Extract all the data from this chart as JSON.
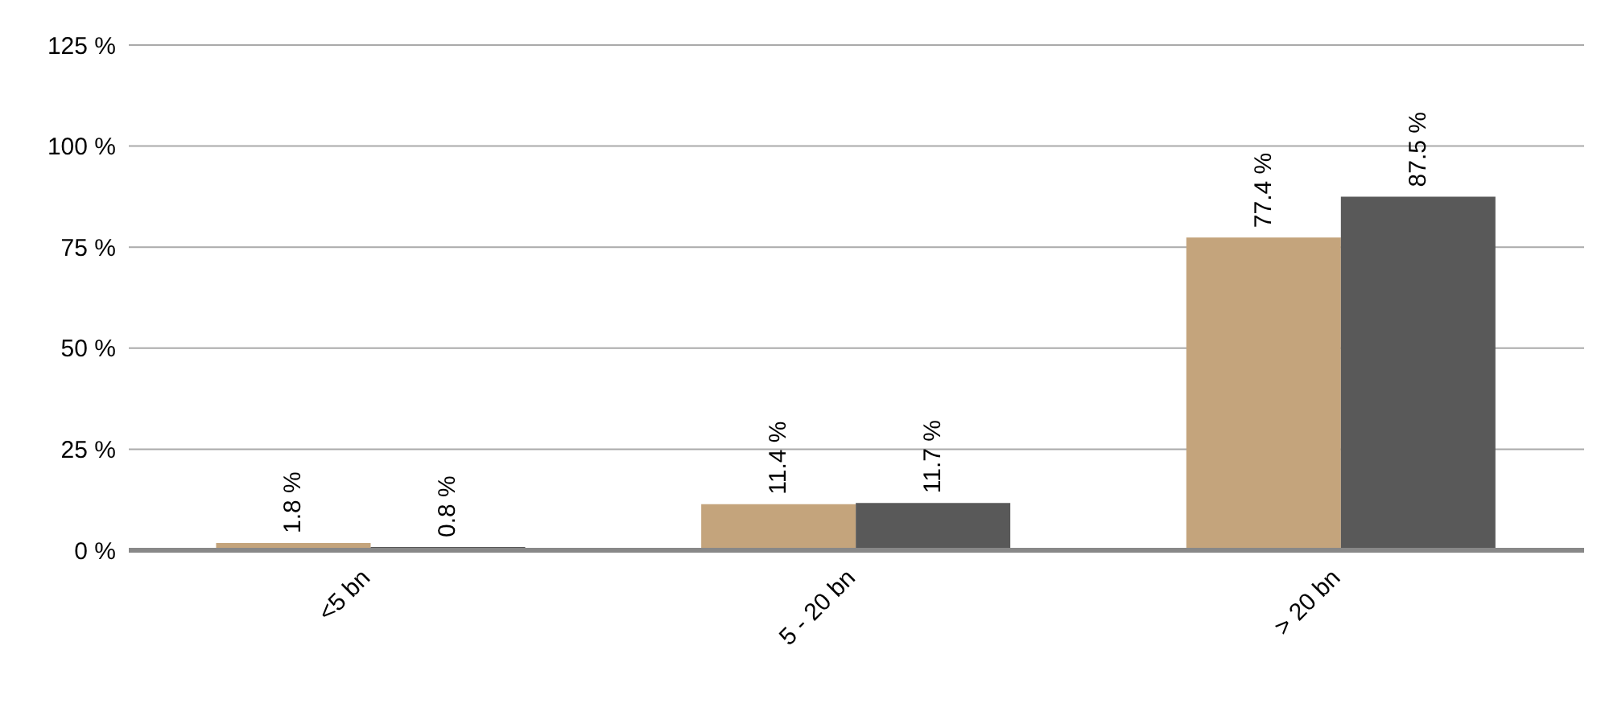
{
  "chart_data": {
    "type": "bar",
    "categories": [
      "<5 bn",
      "5 - 20 bn",
      "> 20 bn"
    ],
    "series": [
      {
        "color": "#c4a47c",
        "values": [
          1.8,
          11.4,
          77.4
        ],
        "value_labels": [
          "1.8 %",
          "11.4 %",
          "77.4 %"
        ]
      },
      {
        "color": "#595959",
        "values": [
          0.8,
          11.7,
          87.5
        ],
        "value_labels": [
          "0.8 %",
          "11.7 %",
          "87.5 %"
        ]
      }
    ],
    "ylim": [
      0,
      125
    ],
    "yticks": [
      {
        "value": 0,
        "label": "0 %"
      },
      {
        "value": 25,
        "label": "25 %"
      },
      {
        "value": 50,
        "label": "50 %"
      },
      {
        "value": 75,
        "label": "75 %"
      },
      {
        "value": 100,
        "label": "100 %"
      },
      {
        "value": 125,
        "label": "125 %"
      }
    ],
    "grid": "y",
    "legend": false
  }
}
